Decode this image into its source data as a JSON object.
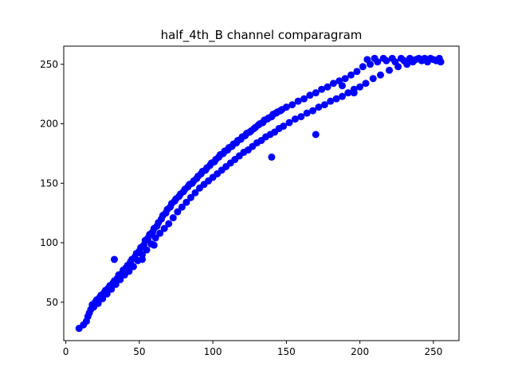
{
  "chart_data": {
    "type": "scatter",
    "title": "half_4th_B channel comparagram",
    "xlabel": "",
    "ylabel": "",
    "xlim": [
      -1.4,
      267.4
    ],
    "ylim": [
      17.75,
      265.25
    ],
    "x_ticks": [
      0,
      50,
      100,
      150,
      200,
      250
    ],
    "y_ticks": [
      50,
      100,
      150,
      200,
      250
    ],
    "grid": false,
    "legend": "none",
    "marker_color": "#0000ff",
    "series": [
      {
        "points": [
          [
            9,
            28
          ],
          [
            12,
            31
          ],
          [
            14,
            34
          ],
          [
            15,
            38
          ],
          [
            16,
            41
          ],
          [
            17,
            44
          ],
          [
            18,
            48
          ],
          [
            19,
            46
          ],
          [
            20,
            50
          ],
          [
            21,
            52
          ],
          [
            22,
            49
          ],
          [
            23,
            54
          ],
          [
            24,
            56
          ],
          [
            25,
            53
          ],
          [
            26,
            58
          ],
          [
            27,
            60
          ],
          [
            28,
            57
          ],
          [
            29,
            62
          ],
          [
            30,
            64
          ],
          [
            31,
            61
          ],
          [
            32,
            66
          ],
          [
            33,
            86
          ],
          [
            33,
            68
          ],
          [
            34,
            65
          ],
          [
            35,
            70
          ],
          [
            36,
            73
          ],
          [
            37,
            69
          ],
          [
            38,
            74
          ],
          [
            39,
            77
          ],
          [
            40,
            73
          ],
          [
            41,
            79
          ],
          [
            42,
            81
          ],
          [
            43,
            76
          ],
          [
            44,
            84
          ],
          [
            45,
            86
          ],
          [
            46,
            80
          ],
          [
            47,
            88
          ],
          [
            48,
            91
          ],
          [
            49,
            85
          ],
          [
            50,
            93
          ],
          [
            51,
            96
          ],
          [
            52,
            90
          ],
          [
            53,
            98
          ],
          [
            54,
            102
          ],
          [
            55,
            94
          ],
          [
            56,
            104
          ],
          [
            57,
            107
          ],
          [
            58,
            99
          ],
          [
            59,
            109
          ],
          [
            60,
            112
          ],
          [
            61,
            104
          ],
          [
            62,
            114
          ],
          [
            63,
            117
          ],
          [
            64,
            108
          ],
          [
            65,
            120
          ],
          [
            66,
            123
          ],
          [
            67,
            112
          ],
          [
            68,
            125
          ],
          [
            69,
            128
          ],
          [
            70,
            116
          ],
          [
            71,
            130
          ],
          [
            72,
            133
          ],
          [
            73,
            121
          ],
          [
            74,
            135
          ],
          [
            75,
            137
          ],
          [
            76,
            126
          ],
          [
            77,
            139
          ],
          [
            78,
            141
          ],
          [
            79,
            130
          ],
          [
            80,
            143
          ],
          [
            81,
            145
          ],
          [
            82,
            134
          ],
          [
            83,
            147
          ],
          [
            84,
            149
          ],
          [
            85,
            138
          ],
          [
            86,
            150
          ],
          [
            87,
            152
          ],
          [
            88,
            142
          ],
          [
            89,
            154
          ],
          [
            90,
            156
          ],
          [
            91,
            146
          ],
          [
            92,
            158
          ],
          [
            93,
            160
          ],
          [
            94,
            149
          ],
          [
            95,
            161
          ],
          [
            96,
            163
          ],
          [
            97,
            152
          ],
          [
            98,
            165
          ],
          [
            99,
            167
          ],
          [
            100,
            155
          ],
          [
            101,
            168
          ],
          [
            102,
            170
          ],
          [
            103,
            158
          ],
          [
            104,
            172
          ],
          [
            105,
            174
          ],
          [
            106,
            161
          ],
          [
            107,
            175
          ],
          [
            108,
            177
          ],
          [
            109,
            164
          ],
          [
            110,
            178
          ],
          [
            111,
            180
          ],
          [
            112,
            167
          ],
          [
            113,
            181
          ],
          [
            114,
            183
          ],
          [
            115,
            170
          ],
          [
            116,
            184
          ],
          [
            117,
            186
          ],
          [
            118,
            173
          ],
          [
            119,
            187
          ],
          [
            120,
            189
          ],
          [
            121,
            176
          ],
          [
            122,
            190
          ],
          [
            123,
            192
          ],
          [
            124,
            178
          ],
          [
            125,
            193
          ],
          [
            126,
            194
          ],
          [
            127,
            181
          ],
          [
            128,
            196
          ],
          [
            129,
            197
          ],
          [
            130,
            184
          ],
          [
            131,
            199
          ],
          [
            132,
            200
          ],
          [
            133,
            186
          ],
          [
            134,
            201
          ],
          [
            135,
            203
          ],
          [
            136,
            189
          ],
          [
            137,
            204
          ],
          [
            138,
            205
          ],
          [
            139,
            191
          ],
          [
            140,
            206
          ],
          [
            141,
            208
          ],
          [
            142,
            193
          ],
          [
            143,
            209
          ],
          [
            144,
            210
          ],
          [
            145,
            196
          ],
          [
            146,
            211
          ],
          [
            147,
            212
          ],
          [
            148,
            198
          ],
          [
            150,
            214
          ],
          [
            152,
            201
          ],
          [
            154,
            216
          ],
          [
            156,
            204
          ],
          [
            158,
            219
          ],
          [
            160,
            206
          ],
          [
            162,
            221
          ],
          [
            164,
            209
          ],
          [
            166,
            224
          ],
          [
            168,
            211
          ],
          [
            170,
            226
          ],
          [
            172,
            214
          ],
          [
            174,
            229
          ],
          [
            176,
            216
          ],
          [
            178,
            231
          ],
          [
            180,
            219
          ],
          [
            182,
            234
          ],
          [
            184,
            221
          ],
          [
            186,
            236
          ],
          [
            188,
            223
          ],
          [
            190,
            238
          ],
          [
            192,
            226
          ],
          [
            194,
            241
          ],
          [
            196,
            229
          ],
          [
            198,
            244
          ],
          [
            200,
            231
          ],
          [
            202,
            248
          ],
          [
            204,
            234
          ],
          [
            205,
            254
          ],
          [
            207,
            250
          ],
          [
            209,
            238
          ],
          [
            210,
            255
          ],
          [
            212,
            252
          ],
          [
            214,
            241
          ],
          [
            216,
            255
          ],
          [
            218,
            253
          ],
          [
            220,
            245
          ],
          [
            222,
            255
          ],
          [
            224,
            252
          ],
          [
            226,
            248
          ],
          [
            228,
            255
          ],
          [
            230,
            253
          ],
          [
            232,
            250
          ],
          [
            234,
            255
          ],
          [
            236,
            252
          ],
          [
            238,
            254
          ],
          [
            240,
            255
          ],
          [
            242,
            253
          ],
          [
            244,
            255
          ],
          [
            246,
            252
          ],
          [
            248,
            255
          ],
          [
            250,
            254
          ],
          [
            252,
            253
          ],
          [
            254,
            255
          ],
          [
            255,
            252
          ],
          [
            140,
            172
          ],
          [
            170,
            191
          ],
          [
            188,
            232
          ],
          [
            196,
            226
          ],
          [
            60,
            98
          ],
          [
            52,
            86
          ]
        ]
      }
    ]
  }
}
